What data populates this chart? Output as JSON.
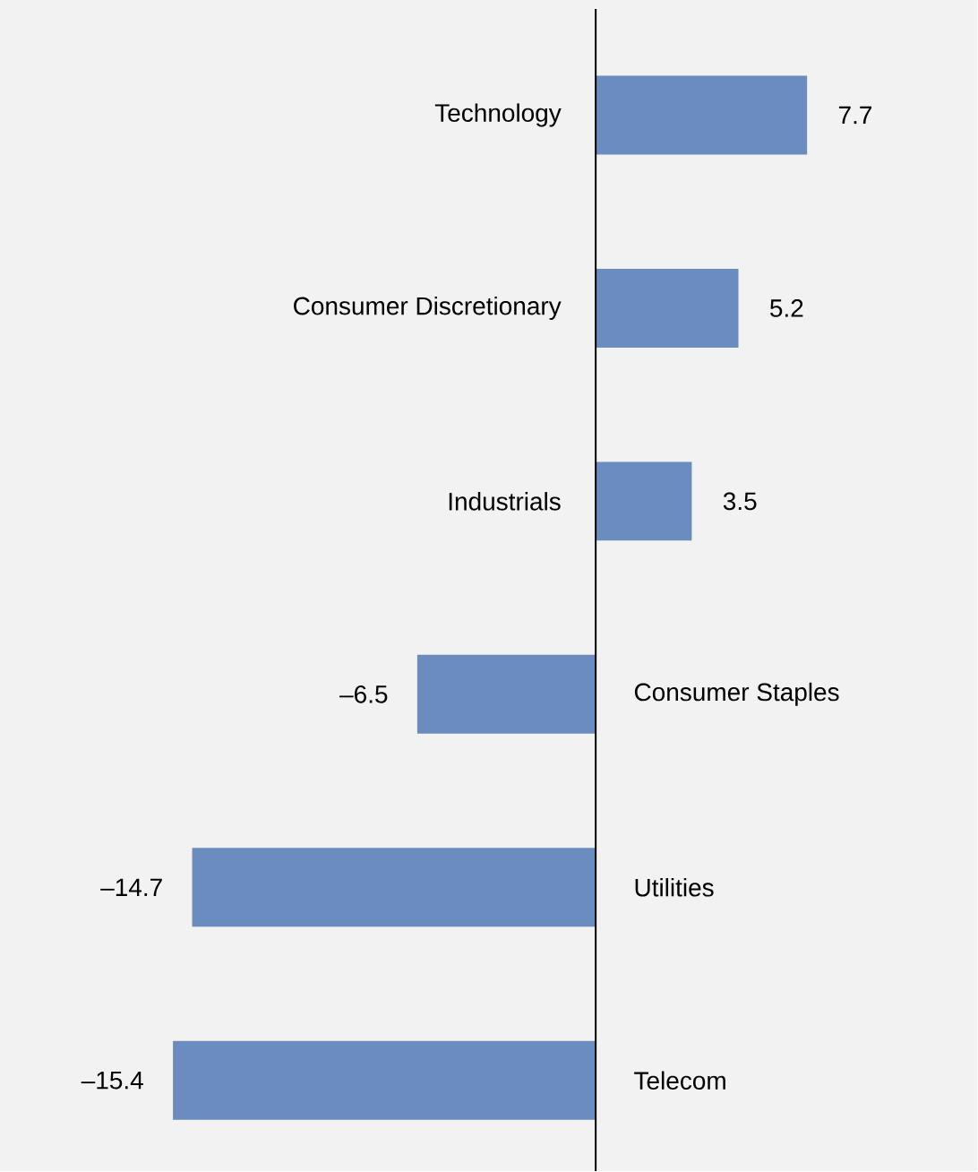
{
  "chart_data": {
    "type": "bar",
    "orientation": "horizontal",
    "categories": [
      "Technology",
      "Consumer Discretionary",
      "Industrials",
      "Consumer Staples",
      "Utilities",
      "Telecom"
    ],
    "values": [
      7.7,
      5.2,
      3.5,
      -6.5,
      -14.7,
      -15.4
    ],
    "value_labels": [
      "7.7",
      "5.2",
      "3.5",
      "–6.5",
      "–14.7",
      "–15.4"
    ],
    "color": "#6b8cbe",
    "xlim": [
      -21.7,
      13.9
    ]
  }
}
